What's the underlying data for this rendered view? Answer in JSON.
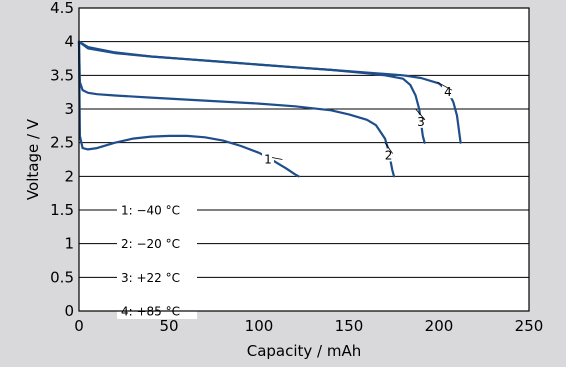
{
  "chart_data": {
    "type": "line",
    "title": "",
    "xlabel": "Capacity / mAh",
    "ylabel": "Voltage / V",
    "xlim": [
      0,
      250
    ],
    "ylim": [
      0,
      4.5
    ],
    "x_ticks": [
      "0",
      "50",
      "100",
      "150",
      "200",
      "250"
    ],
    "y_ticks": [
      "0",
      "0.5",
      "1",
      "1.5",
      "2",
      "2.5",
      "3",
      "3.5",
      "4",
      "4.5"
    ],
    "grid": "horizontal",
    "legend_position": "bottom-left",
    "line_color": "#1f4e8c",
    "legend": [
      "1:  −40 °C",
      "2:  −20 °C",
      "3:  +22 °C",
      "4:  +85 °C"
    ],
    "series": [
      {
        "name": "1",
        "x": [
          0,
          0.5,
          2,
          5,
          10,
          20,
          30,
          40,
          50,
          60,
          70,
          80,
          90,
          100,
          105,
          110,
          115,
          120,
          122
        ],
        "y": [
          4.0,
          2.6,
          2.42,
          2.4,
          2.42,
          2.5,
          2.56,
          2.59,
          2.6,
          2.6,
          2.58,
          2.53,
          2.45,
          2.35,
          2.28,
          2.2,
          2.12,
          2.03,
          2.0
        ]
      },
      {
        "name": "2",
        "x": [
          0,
          0.5,
          2,
          5,
          10,
          20,
          40,
          60,
          80,
          100,
          120,
          140,
          150,
          160,
          165,
          170,
          172,
          174,
          175
        ],
        "y": [
          4.0,
          3.4,
          3.28,
          3.24,
          3.22,
          3.2,
          3.17,
          3.14,
          3.11,
          3.08,
          3.04,
          2.98,
          2.92,
          2.84,
          2.76,
          2.56,
          2.38,
          2.1,
          2.0
        ]
      },
      {
        "name": "3",
        "x": [
          0,
          5,
          20,
          40,
          60,
          80,
          100,
          120,
          140,
          160,
          170,
          180,
          184,
          187,
          189,
          190,
          191,
          192
        ],
        "y": [
          4.0,
          3.9,
          3.83,
          3.78,
          3.74,
          3.7,
          3.66,
          3.62,
          3.58,
          3.53,
          3.5,
          3.45,
          3.36,
          3.2,
          3.0,
          2.8,
          2.6,
          2.5
        ]
      },
      {
        "name": "4",
        "x": [
          0,
          5,
          20,
          40,
          60,
          80,
          100,
          120,
          140,
          160,
          180,
          190,
          200,
          205,
          208,
          210,
          212
        ],
        "y": [
          4.0,
          3.92,
          3.84,
          3.78,
          3.74,
          3.7,
          3.66,
          3.62,
          3.58,
          3.54,
          3.5,
          3.46,
          3.38,
          3.26,
          3.1,
          2.9,
          2.5
        ]
      }
    ]
  }
}
